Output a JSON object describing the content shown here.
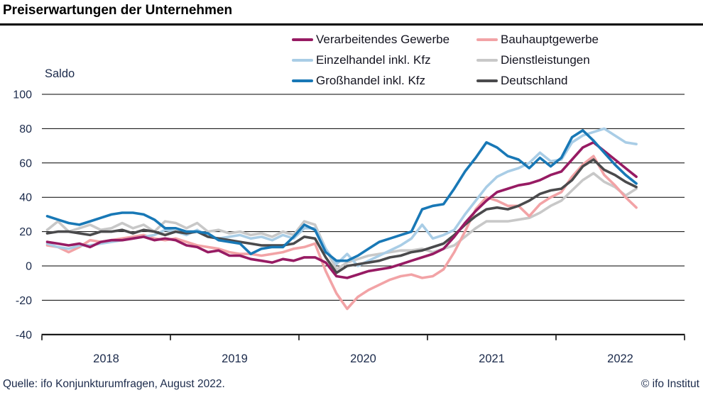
{
  "header": {
    "title": "Preiserwartungen der Unternehmen"
  },
  "axis": {
    "y_label": "Saldo"
  },
  "footer": {
    "source": "Quelle: ifo Konjunkturumfragen, August 2022.",
    "copyright": "© ifo Institut"
  },
  "chart_data": {
    "type": "line",
    "title": "Preiserwartungen der Unternehmen",
    "ylabel": "Saldo",
    "ylim": [
      -40,
      100
    ],
    "y_ticks": [
      100,
      80,
      60,
      40,
      20,
      0,
      -20,
      -40
    ],
    "x_tick_labels": [
      "2018",
      "2019",
      "2020",
      "2021",
      "2022"
    ],
    "x_frequency": "monthly",
    "x_range": [
      "2018-01",
      "2022-08"
    ],
    "grid": "horizontal",
    "legend_position": "top-right",
    "draw_order": [
      3,
      1,
      2,
      5,
      0,
      4
    ],
    "series": [
      {
        "name": "Verarbeitendes Gewerbe",
        "color": "#971B63",
        "values": [
          14,
          13,
          12,
          13,
          11,
          14,
          15,
          15,
          16,
          17,
          15,
          16,
          15,
          12,
          11,
          8,
          9,
          6,
          6,
          4,
          3,
          2,
          4,
          3,
          5,
          5,
          2,
          -6,
          -7,
          -5,
          -3,
          -2,
          -1,
          1,
          3,
          5,
          7,
          10,
          17,
          25,
          32,
          38,
          43,
          45,
          47,
          48,
          50,
          53,
          55,
          62,
          69,
          72,
          67,
          62,
          57,
          52
        ]
      },
      {
        "name": "Bauhauptgewerbe",
        "color": "#F2A3A6",
        "values": [
          12,
          11,
          8,
          11,
          15,
          14,
          15,
          16,
          17,
          18,
          16,
          15,
          16,
          14,
          12,
          11,
          10,
          8,
          7,
          7,
          6,
          7,
          8,
          10,
          11,
          13,
          -3,
          -16,
          -25,
          -18,
          -14,
          -11,
          -8,
          -6,
          -5,
          -7,
          -6,
          -2,
          8,
          20,
          33,
          40,
          38,
          35,
          35,
          29,
          36,
          40,
          43,
          52,
          59,
          64,
          53,
          47,
          40,
          34
        ]
      },
      {
        "name": "Einzelhandel inkl. Kfz",
        "color": "#A9CDE6",
        "values": [
          13,
          11,
          10,
          12,
          12,
          13,
          14,
          15,
          16,
          17,
          18,
          21,
          20,
          18,
          21,
          17,
          16,
          17,
          18,
          16,
          17,
          15,
          18,
          16,
          22,
          22,
          10,
          1,
          7,
          0,
          3,
          6,
          9,
          12,
          16,
          24,
          16,
          18,
          21,
          30,
          38,
          46,
          52,
          55,
          57,
          60,
          66,
          61,
          62,
          72,
          76,
          78,
          80,
          76,
          72,
          71
        ]
      },
      {
        "name": "Dienstleistungen",
        "color": "#C8C8C8",
        "values": [
          21,
          26,
          20,
          22,
          24,
          21,
          22,
          25,
          22,
          24,
          20,
          26,
          25,
          22,
          25,
          20,
          21,
          19,
          20,
          18,
          19,
          17,
          20,
          18,
          26,
          24,
          10,
          -2,
          2,
          4,
          6,
          7,
          8,
          9,
          9,
          10,
          8,
          10,
          12,
          17,
          22,
          26,
          26,
          26,
          27,
          28,
          31,
          35,
          38,
          44,
          50,
          54,
          49,
          46,
          41,
          45
        ]
      },
      {
        "name": "Großhandel inkl. Kfz",
        "color": "#1878B6",
        "values": [
          29,
          27,
          25,
          24,
          26,
          28,
          30,
          31,
          31,
          30,
          27,
          22,
          22,
          20,
          20,
          19,
          15,
          14,
          13,
          7,
          10,
          11,
          11,
          17,
          24,
          21,
          8,
          3,
          3,
          6,
          10,
          14,
          16,
          18,
          20,
          33,
          35,
          36,
          45,
          55,
          63,
          72,
          69,
          64,
          62,
          57,
          63,
          58,
          63,
          75,
          79,
          73,
          66,
          59,
          53,
          48
        ]
      },
      {
        "name": "Deutschland",
        "color": "#4A4A4C",
        "values": [
          19,
          20,
          20,
          19,
          18,
          20,
          20,
          21,
          19,
          21,
          20,
          18,
          20,
          19,
          20,
          17,
          16,
          15,
          14,
          13,
          12,
          12,
          12,
          13,
          17,
          16,
          5,
          -4,
          0,
          1,
          2,
          3,
          5,
          6,
          8,
          9,
          11,
          13,
          18,
          24,
          29,
          33,
          34,
          33,
          35,
          38,
          42,
          44,
          45,
          50,
          58,
          62,
          56,
          53,
          49,
          46
        ]
      }
    ]
  }
}
